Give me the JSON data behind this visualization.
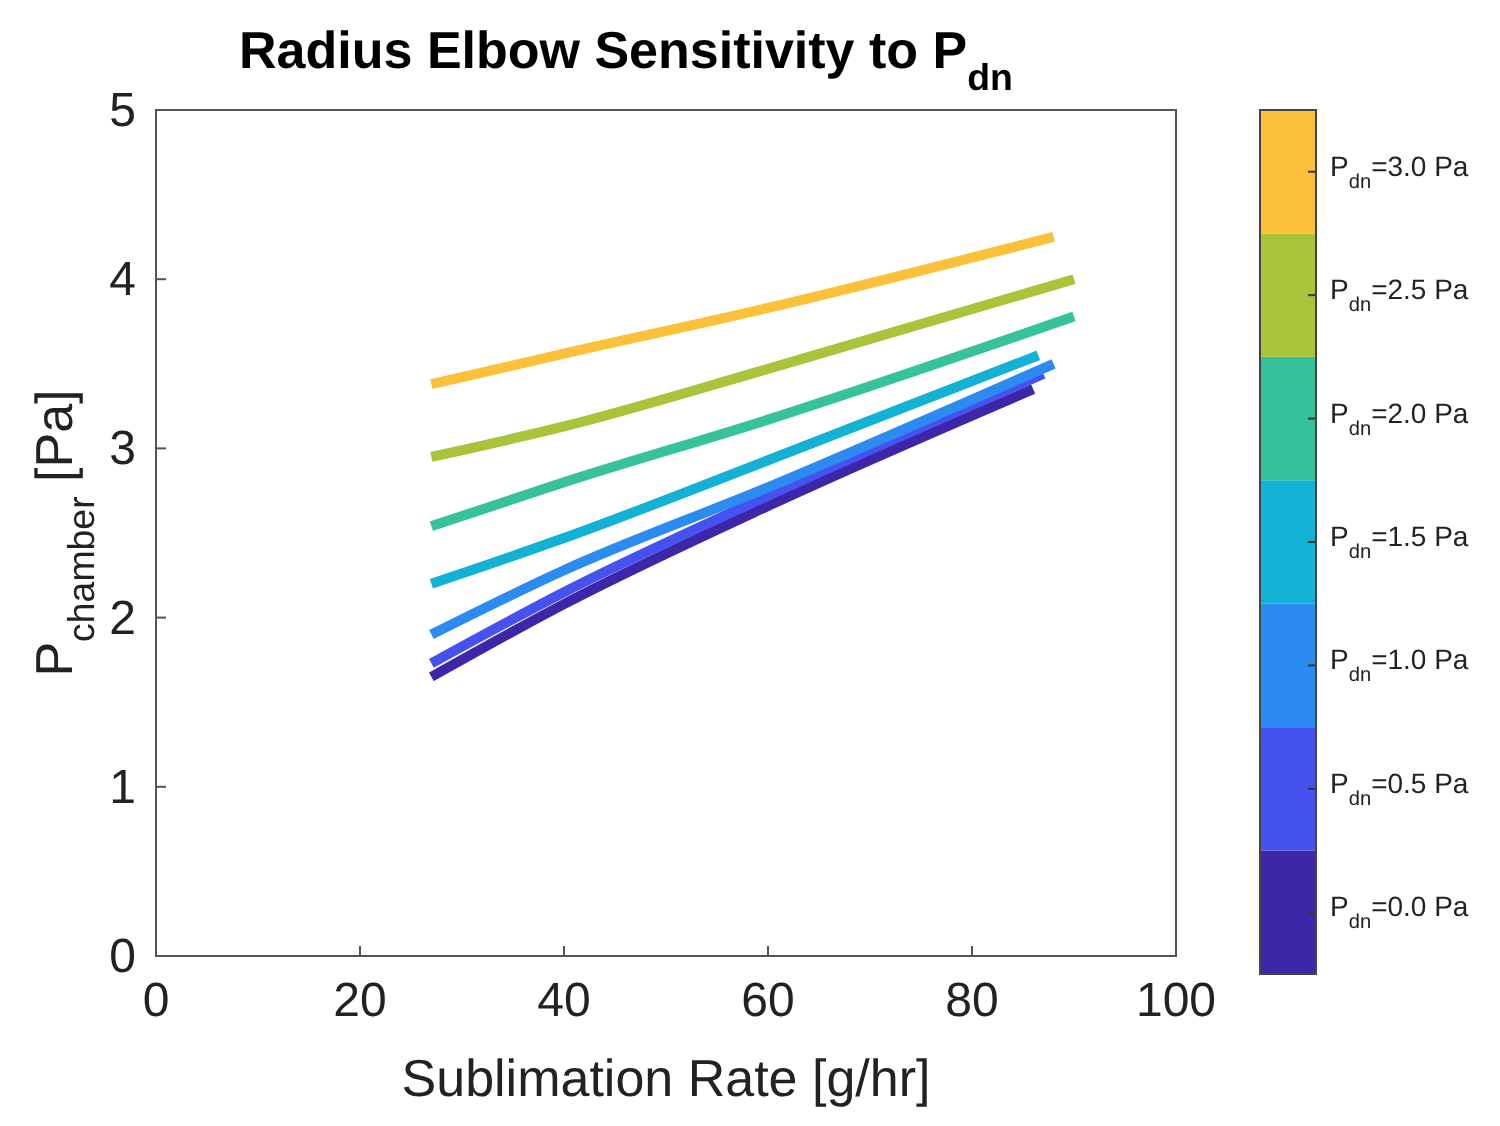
{
  "chart_data": {
    "type": "line",
    "title": "Radius Elbow Sensitivity to P$_{dn}$",
    "xlabel": "Sublimation Rate [g/hr]",
    "ylabel": "P$_{chamber}$ [Pa]",
    "xlim": [
      0,
      100
    ],
    "xticks": [
      0,
      20,
      40,
      60,
      80,
      100
    ],
    "ylim": [
      0,
      5
    ],
    "yticks": [
      0,
      1,
      2,
      3,
      4,
      5
    ],
    "grid": false,
    "legend": "right",
    "line_style": "solid",
    "marker": "none",
    "series": [
      {
        "name": "P$_{dn}$=0.0 Pa",
        "color": "#3e26a8",
        "x": [
          27,
          40,
          60,
          86
        ],
        "values": [
          1.65,
          2.08,
          2.66,
          3.35
        ]
      },
      {
        "name": "P$_{dn}$=0.5 Pa",
        "color": "#4552f0",
        "x": [
          27,
          40,
          60,
          87
        ],
        "values": [
          1.73,
          2.15,
          2.72,
          3.44
        ]
      },
      {
        "name": "P$_{dn}$=1.0 Pa",
        "color": "#2c8bf0",
        "x": [
          27,
          40,
          60,
          88
        ],
        "values": [
          1.9,
          2.28,
          2.77,
          3.5
        ]
      },
      {
        "name": "P$_{dn}$=1.5 Pa",
        "color": "#13b2d4",
        "x": [
          27,
          40,
          60,
          86.5
        ],
        "values": [
          2.2,
          2.47,
          2.93,
          3.55
        ]
      },
      {
        "name": "P$_{dn}$=2.0 Pa",
        "color": "#36c39b",
        "x": [
          27,
          40,
          60,
          90
        ],
        "values": [
          2.54,
          2.8,
          3.17,
          3.78
        ]
      },
      {
        "name": "P$_{dn}$=2.5 Pa",
        "color": "#a9c43a",
        "x": [
          27,
          40,
          60,
          90
        ],
        "values": [
          2.95,
          3.13,
          3.47,
          4.0
        ]
      },
      {
        "name": "P$_{dn}$=3.0 Pa",
        "color": "#fbc13a",
        "x": [
          27,
          40,
          60,
          88
        ],
        "values": [
          3.38,
          3.56,
          3.83,
          4.25
        ]
      }
    ]
  }
}
